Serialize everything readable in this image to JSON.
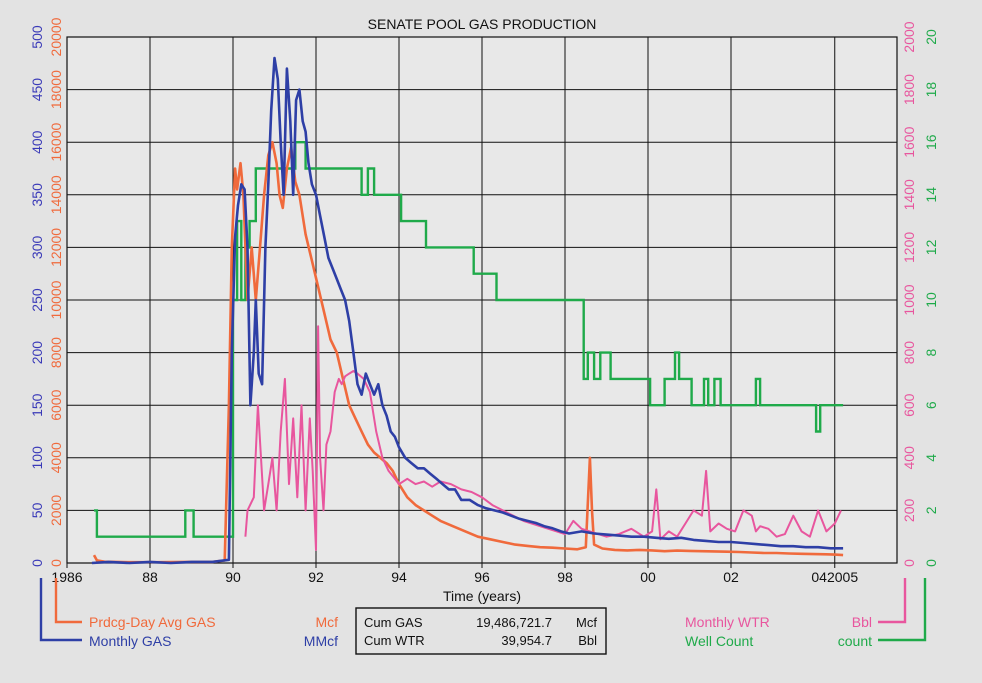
{
  "chart_data": {
    "type": "line",
    "title": "SENATE POOL GAS PRODUCTION",
    "xlabel": "Time (years)",
    "xlim": [
      1986,
      2006
    ],
    "x_tick_labels": [
      {
        "x": 1986,
        "label": "1986"
      },
      {
        "x": 1988,
        "label": "88"
      },
      {
        "x": 1990,
        "label": "90"
      },
      {
        "x": 1992,
        "label": "92"
      },
      {
        "x": 1994,
        "label": "94"
      },
      {
        "x": 1996,
        "label": "96"
      },
      {
        "x": 1998,
        "label": "98"
      },
      {
        "x": 2000,
        "label": "00"
      },
      {
        "x": 2002,
        "label": "02"
      },
      {
        "x": 2004.5,
        "label": "042005"
      }
    ],
    "axes": {
      "left_outer": {
        "color": "#3a3ab8",
        "range": [
          0,
          500
        ],
        "ticks": [
          0,
          50,
          100,
          150,
          200,
          250,
          300,
          350,
          400,
          450,
          500
        ]
      },
      "left_inner": {
        "color": "#f06a3c",
        "range": [
          0,
          20000
        ],
        "ticks": [
          0,
          2000,
          4000,
          6000,
          8000,
          10000,
          12000,
          14000,
          16000,
          18000,
          20000
        ]
      },
      "right_inner": {
        "color": "#e8569e",
        "range": [
          0,
          2000
        ],
        "ticks": [
          0,
          200,
          400,
          600,
          800,
          1000,
          1200,
          1400,
          1600,
          1800,
          2000
        ]
      },
      "right_outer": {
        "color": "#1faa4a",
        "range": [
          0,
          20
        ],
        "ticks": [
          0,
          2,
          4,
          6,
          8,
          10,
          12,
          14,
          16,
          18,
          20
        ]
      }
    },
    "grid": true,
    "legend_placement": "bottom",
    "series": [
      {
        "name": "Prdcg-Day Avg GAS",
        "unit": "Mcf",
        "axis": "left_inner",
        "color": "#f06a3c",
        "x": [
          1986.65,
          1986.72,
          1986.9,
          1987.5,
          1988.2,
          1988.9,
          1989.5,
          1989.8,
          1989.9,
          1989.97,
          1990.05,
          1990.1,
          1990.18,
          1990.25,
          1990.35,
          1990.45,
          1990.55,
          1990.65,
          1990.75,
          1990.85,
          1990.95,
          1991.05,
          1991.12,
          1991.2,
          1991.3,
          1991.4,
          1991.5,
          1991.6,
          1991.75,
          1991.9,
          1992.05,
          1992.2,
          1992.35,
          1992.5,
          1992.65,
          1992.8,
          1992.95,
          1993.1,
          1993.25,
          1993.4,
          1993.55,
          1993.7,
          1993.85,
          1994,
          1994.2,
          1994.4,
          1994.6,
          1994.8,
          1995,
          1995.3,
          1995.6,
          1995.9,
          1996.2,
          1996.5,
          1996.8,
          1997.1,
          1997.4,
          1997.7,
          1998,
          1998.3,
          1998.5,
          1998.6,
          1998.65,
          1998.7,
          1998.9,
          1999.2,
          1999.5,
          1999.8,
          2000.1,
          2000.4,
          2000.7,
          2001,
          2001.3,
          2001.6,
          2001.9,
          2002.2,
          2002.5,
          2002.8,
          2003.1,
          2003.4,
          2003.7,
          2004,
          2004.3,
          2004.5,
          2004.7
        ],
        "y": [
          300,
          100,
          50,
          30,
          30,
          40,
          40,
          100,
          6000,
          12000,
          15000,
          14200,
          15200,
          14000,
          10000,
          12000,
          10000,
          12000,
          14000,
          15500,
          16000,
          15200,
          14000,
          13500,
          15000,
          15800,
          14500,
          14000,
          12500,
          11500,
          10500,
          9500,
          8500,
          8000,
          7000,
          6000,
          5500,
          5000,
          4500,
          4200,
          4000,
          3800,
          3500,
          3000,
          2500,
          2200,
          2000,
          1800,
          1600,
          1400,
          1200,
          1000,
          900,
          800,
          700,
          650,
          600,
          580,
          550,
          520,
          600,
          4000,
          2000,
          700,
          550,
          500,
          480,
          500,
          480,
          450,
          470,
          460,
          450,
          440,
          430,
          420,
          400,
          380,
          380,
          360,
          350,
          340,
          330,
          320,
          300
        ]
      },
      {
        "name": "Monthly GAS",
        "unit": "MMcf",
        "axis": "left_outer",
        "color": "#2e3fa6",
        "x": [
          1986.6,
          1987,
          1987.5,
          1988,
          1988.5,
          1989,
          1989.5,
          1989.9,
          1989.97,
          1990.05,
          1990.12,
          1990.2,
          1990.28,
          1990.35,
          1990.42,
          1990.5,
          1990.55,
          1990.62,
          1990.7,
          1990.78,
          1990.85,
          1990.92,
          1991,
          1991.08,
          1991.15,
          1991.22,
          1991.3,
          1991.38,
          1991.45,
          1991.52,
          1991.6,
          1991.68,
          1991.75,
          1991.82,
          1991.9,
          1992,
          1992.1,
          1992.2,
          1992.3,
          1992.4,
          1992.5,
          1992.6,
          1992.7,
          1992.8,
          1992.9,
          1993,
          1993.1,
          1993.2,
          1993.3,
          1993.4,
          1993.5,
          1993.6,
          1993.7,
          1993.8,
          1993.9,
          1994,
          1994.15,
          1994.3,
          1994.45,
          1994.6,
          1994.75,
          1994.9,
          1995.05,
          1995.2,
          1995.35,
          1995.5,
          1995.7,
          1995.9,
          1996.1,
          1996.3,
          1996.5,
          1996.7,
          1996.9,
          1997.1,
          1997.3,
          1997.5,
          1997.7,
          1997.9,
          1998.1,
          1998.4,
          1998.7,
          1999,
          1999.3,
          1999.6,
          1999.9,
          2000.2,
          2000.5,
          2000.8,
          2001.1,
          2001.4,
          2001.7,
          2002,
          2002.3,
          2002.6,
          2002.9,
          2003.2,
          2003.5,
          2003.8,
          2004.1,
          2004.4,
          2004.7
        ],
        "y": [
          0,
          1,
          0,
          1,
          0,
          1,
          1,
          3,
          200,
          310,
          340,
          360,
          355,
          300,
          150,
          200,
          250,
          180,
          170,
          300,
          360,
          430,
          480,
          460,
          400,
          350,
          470,
          420,
          350,
          440,
          450,
          420,
          410,
          380,
          360,
          350,
          330,
          310,
          290,
          280,
          270,
          260,
          250,
          230,
          200,
          170,
          160,
          180,
          170,
          160,
          170,
          150,
          140,
          125,
          120,
          110,
          100,
          95,
          90,
          90,
          85,
          80,
          75,
          70,
          70,
          60,
          60,
          55,
          52,
          50,
          48,
          45,
          42,
          40,
          38,
          35,
          33,
          30,
          28,
          30,
          28,
          27,
          26,
          25,
          25,
          24,
          23,
          24,
          22,
          21,
          20,
          20,
          19,
          18,
          17,
          16,
          16,
          15,
          15,
          14,
          14
        ]
      },
      {
        "name": "Monthly WTR",
        "unit": "Bbl",
        "axis": "right_inner",
        "color": "#e8569e",
        "x": [
          1990.3,
          1990.35,
          1990.5,
          1990.6,
          1990.75,
          1990.85,
          1990.95,
          1991.05,
          1991.15,
          1991.25,
          1991.35,
          1991.45,
          1991.55,
          1991.65,
          1991.75,
          1991.85,
          1991.92,
          1992,
          1992.05,
          1992.1,
          1992.18,
          1992.25,
          1992.35,
          1992.45,
          1992.55,
          1992.62,
          1992.7,
          1992.8,
          1992.9,
          1993,
          1993.15,
          1993.3,
          1993.45,
          1993.6,
          1993.75,
          1993.9,
          1994,
          1994.2,
          1994.4,
          1994.6,
          1994.8,
          1995,
          1995.25,
          1995.5,
          1995.75,
          1996,
          1996.25,
          1996.5,
          1996.75,
          1997,
          1997.2,
          1997.4,
          1997.6,
          1997.8,
          1998,
          1998.2,
          1998.4,
          1998.6,
          1998.8,
          1999,
          1999.3,
          1999.6,
          1999.9,
          2000.1,
          2000.2,
          2000.3,
          2000.5,
          2000.7,
          2000.9,
          2001.1,
          2001.3,
          2001.4,
          2001.5,
          2001.7,
          2001.9,
          2002.1,
          2002.3,
          2002.5,
          2002.6,
          2002.7,
          2002.9,
          2003.1,
          2003.3,
          2003.5,
          2003.7,
          2003.9,
          2004.1,
          2004.3,
          2004.5,
          2004.65
        ],
        "y": [
          100,
          200,
          250,
          600,
          200,
          300,
          400,
          200,
          500,
          700,
          300,
          550,
          250,
          600,
          200,
          550,
          350,
          50,
          900,
          400,
          200,
          450,
          500,
          650,
          700,
          680,
          710,
          720,
          730,
          720,
          700,
          650,
          500,
          400,
          350,
          320,
          300,
          320,
          300,
          310,
          290,
          310,
          300,
          280,
          270,
          250,
          220,
          200,
          180,
          160,
          150,
          140,
          130,
          120,
          110,
          160,
          130,
          120,
          110,
          100,
          110,
          130,
          100,
          120,
          280,
          90,
          120,
          100,
          150,
          200,
          180,
          350,
          120,
          150,
          130,
          120,
          200,
          180,
          120,
          140,
          130,
          100,
          110,
          180,
          120,
          100,
          200,
          120,
          150,
          200
        ]
      },
      {
        "name": "Well Count",
        "unit": "count",
        "axis": "right_outer",
        "color": "#1faa4a",
        "x": [
          1986.65,
          1986.72,
          1986.72,
          1987.3,
          1987.5,
          1987.9,
          1988.1,
          1988.6,
          1988.85,
          1988.85,
          1989.05,
          1989.05,
          1989.5,
          1989.9,
          1990,
          1990,
          1990.1,
          1990.1,
          1990.2,
          1990.2,
          1990.3,
          1990.3,
          1990.4,
          1990.4,
          1990.55,
          1990.55,
          1991.5,
          1991.5,
          1991.75,
          1991.75,
          1993.1,
          1993.1,
          1993.25,
          1993.25,
          1993.4,
          1993.4,
          1994.05,
          1994.05,
          1994.65,
          1994.65,
          1995.8,
          1995.8,
          1996.35,
          1996.35,
          1998.45,
          1998.45,
          1998.55,
          1998.55,
          1998.7,
          1998.7,
          1998.85,
          1998.85,
          1999.1,
          1999.1,
          2000.05,
          2000.05,
          2000.4,
          2000.4,
          2000.65,
          2000.65,
          2000.75,
          2000.75,
          2001.05,
          2001.05,
          2001.35,
          2001.35,
          2001.45,
          2001.45,
          2001.6,
          2001.6,
          2001.75,
          2001.75,
          2002.6,
          2002.6,
          2002.7,
          2002.7,
          2004.05,
          2004.05,
          2004.15,
          2004.15,
          2004.7
        ],
        "y": [
          2,
          2,
          1,
          1,
          1,
          1,
          1,
          1,
          1,
          2,
          2,
          1,
          1,
          1,
          1,
          10,
          10,
          13,
          13,
          10,
          10,
          12,
          12,
          13,
          13,
          15,
          15,
          16,
          16,
          15,
          15,
          14,
          14,
          15,
          15,
          14,
          14,
          13,
          13,
          12,
          12,
          11,
          11,
          10,
          10,
          7,
          7,
          8,
          8,
          7,
          7,
          8,
          8,
          7,
          7,
          6,
          6,
          7,
          7,
          8,
          8,
          7,
          7,
          6,
          6,
          7,
          7,
          6,
          6,
          7,
          7,
          6,
          6,
          7,
          7,
          6,
          6,
          5,
          5,
          6,
          6
        ]
      }
    ],
    "cumulative_box": [
      {
        "label": "Cum GAS",
        "value": "19,486,721.7",
        "unit": "Mcf"
      },
      {
        "label": "Cum WTR",
        "value": "39,954.7",
        "unit": "Bbl"
      }
    ]
  },
  "colors": {
    "background": "#e3e3e3",
    "plot_background": "#e8e8e8",
    "grid": "#111111"
  }
}
